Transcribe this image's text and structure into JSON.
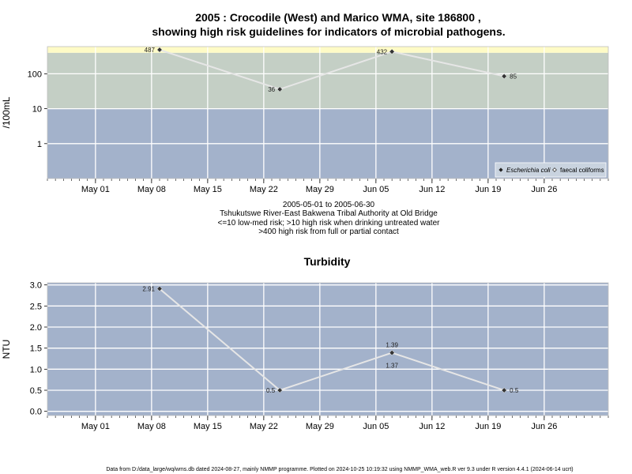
{
  "chart_data": [
    {
      "type": "line",
      "title_line1": "2005 : Crocodile (West) and Marico WMA, site 186800 ,",
      "title_line2": "showing high risk guidelines for indicators of microbial pathogens.",
      "ylabel": "/100mL",
      "yscale": "log",
      "ylim": [
        0.1,
        600
      ],
      "yticks": [
        1,
        10,
        100
      ],
      "ytick_labels": [
        "1",
        "10",
        "100"
      ],
      "xlim": [
        "2005-04-25",
        "2005-07-04"
      ],
      "xticks": [
        "2005-05-01",
        "2005-05-08",
        "2005-05-15",
        "2005-05-22",
        "2005-05-29",
        "2005-06-05",
        "2005-06-12",
        "2005-06-19",
        "2005-06-26"
      ],
      "xtick_labels": [
        "May 01",
        "May 08",
        "May 15",
        "May 22",
        "May 29",
        "Jun 05",
        "Jun 12",
        "Jun 19",
        "Jun 26"
      ],
      "bands": [
        {
          "from": 0.1,
          "to": 10,
          "color": "#a3b2cb"
        },
        {
          "from": 10,
          "to": 400,
          "color": "#c4cfc5"
        },
        {
          "from": 400,
          "to": 600,
          "color": "#fefbc6"
        }
      ],
      "series": [
        {
          "name": "Escherichia coli",
          "marker": "filled-diamond",
          "x": [
            "2005-05-09",
            "2005-05-24",
            "2005-06-07",
            "2005-06-21"
          ],
          "y": [
            487,
            36,
            432,
            85
          ],
          "labels": [
            "487",
            "36",
            "432",
            "85"
          ]
        }
      ],
      "legend": {
        "placement": "bottom-right",
        "entries": [
          "Escherichia coli",
          "faecal coliforms"
        ]
      },
      "info_lines": [
        "2005-05-01 to 2005-06-30",
        "Tshukutswe River-East Bakwena Tribal Authority at Old Bridge",
        "<=10 low-med risk; >10 high risk when drinking untreated water",
        ">400 high risk from full or partial contact"
      ],
      "colors": {
        "line": "#e6e6e6",
        "marker": "#333333",
        "grid": "#ffffff"
      }
    },
    {
      "type": "line",
      "title": "Turbidity",
      "ylabel": "NTU",
      "ylim": [
        -0.1,
        3.05
      ],
      "yticks": [
        0,
        0.5,
        1,
        1.5,
        2,
        2.5,
        3
      ],
      "ytick_labels": [
        "0.0",
        "0.5",
        "1.0",
        "1.5",
        "2.0",
        "2.5",
        "3.0"
      ],
      "xlim": [
        "2005-04-25",
        "2005-07-04"
      ],
      "xticks": [
        "2005-05-01",
        "2005-05-08",
        "2005-05-15",
        "2005-05-22",
        "2005-05-29",
        "2005-06-05",
        "2005-06-12",
        "2005-06-19",
        "2005-06-26"
      ],
      "xtick_labels": [
        "May 01",
        "May 08",
        "May 15",
        "May 22",
        "May 29",
        "Jun 05",
        "Jun 12",
        "Jun 19",
        "Jun 26"
      ],
      "bg_color": "#a3b2cb",
      "series": [
        {
          "marker": "filled-diamond",
          "x": [
            "2005-05-09",
            "2005-05-24",
            "2005-06-07",
            "2005-06-21"
          ],
          "y": [
            2.91,
            0.5,
            1.39,
            0.5
          ],
          "labels": [
            "2.91",
            "0.5",
            "1.39",
            "0.5"
          ]
        }
      ],
      "extra_labels": [
        {
          "x": "2005-06-07",
          "text": "1.37"
        }
      ],
      "colors": {
        "line": "#e6e6e6",
        "marker": "#333333",
        "grid": "#ffffff"
      }
    }
  ],
  "footer": "Data from D:/data_large/wq/wms.db dated 2024-08-27, mainly NMMP programme. Plotted on 2024-10-25 10:19:32 using NMMP_WMA_web.R ver 9.3 under R version 4.4.1 (2024-06-14 ucrt)"
}
